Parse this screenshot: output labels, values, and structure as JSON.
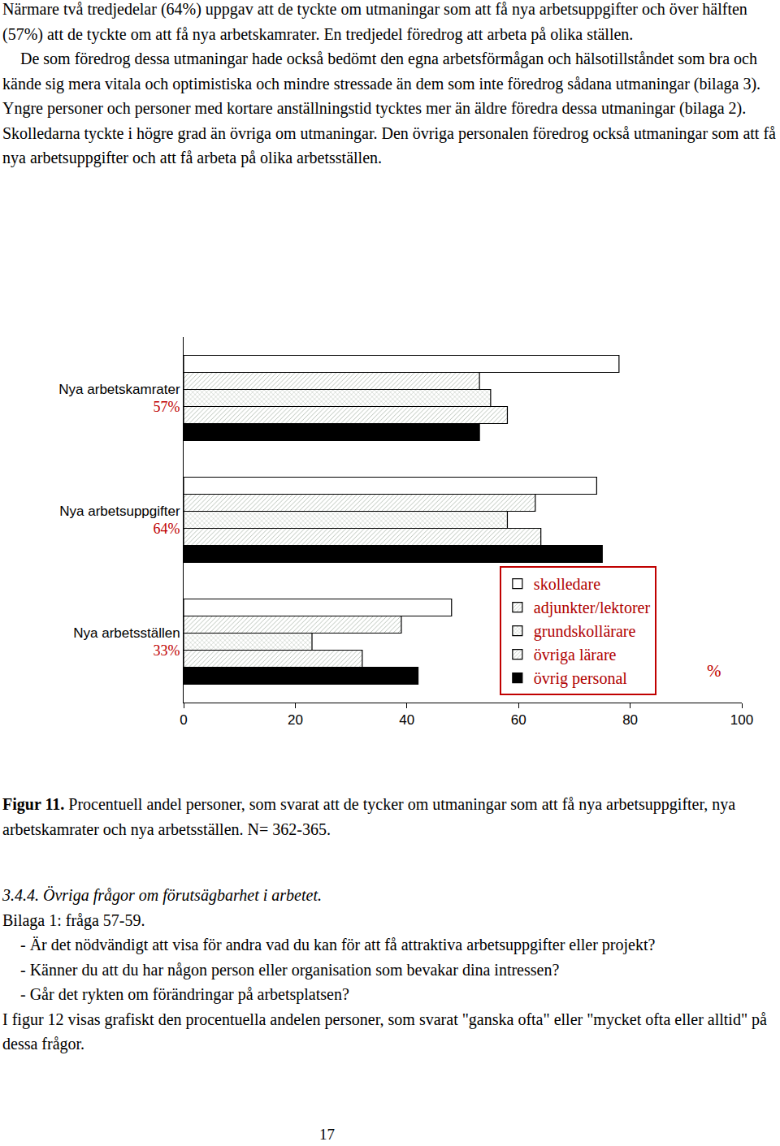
{
  "paragraphs_top": [
    "Närmare två tredjedelar (64%) uppgav att de tyckte om utmaningar som att få nya arbetsuppgifter och över hälften (57%) att de tyckte om att få  nya arbetskamrater. En tredjedel föredrog att arbeta på olika ställen.",
    "De som föredrog dessa utmaningar hade också bedömt den egna arbetsförmågan och hälsotillståndet som bra och kände sig mera vitala och optimistiska och mindre stressade än dem som inte föredrog sådana utmaningar (bilaga 3).",
    "Yngre personer och personer med kortare anställningstid tycktes mer än äldre föredra dessa utmaningar (bilaga 2).",
    "Skolledarna tyckte i högre grad än övriga om utmaningar. Den övriga personalen föredrog också utmaningar som att få nya arbetsuppgifter och att få arbeta på olika arbetsställen."
  ],
  "chart_data": {
    "type": "bar",
    "orientation": "horizontal",
    "categories": [
      "Nya arbetskamrater",
      "Nya arbetsuppgifter",
      "Nya arbetsställen"
    ],
    "category_subtitles": [
      "57%",
      "64%",
      "33%"
    ],
    "series": [
      {
        "name": "skolledare",
        "color": "#ffffff",
        "values": [
          78,
          74,
          48
        ]
      },
      {
        "name": "adjunkter/lektorer",
        "color": "#c9d8c5",
        "values": [
          53,
          63,
          39
        ]
      },
      {
        "name": "grundskollärare",
        "color": "#b57b7b",
        "values": [
          55,
          58,
          23
        ]
      },
      {
        "name": "övriga lärare",
        "color": "#2f3fc4",
        "values": [
          58,
          64,
          32
        ]
      },
      {
        "name": "övrig personal",
        "color": "#000000",
        "values": [
          53,
          75,
          42
        ]
      }
    ],
    "xlabel": "%",
    "xlim": [
      0,
      100
    ],
    "xticks": [
      0,
      20,
      40,
      60,
      80,
      100
    ],
    "grid": false,
    "legend": "bottom right"
  },
  "caption": {
    "label": "Figur 11.",
    "text": "Procentuell andel personer, som  svarat att de tycker om utmaningar som att få nya arbetsuppgifter, nya arbetskamrater och nya arbetsställen. N= 362-365."
  },
  "section": {
    "heading": "3.4.4. Övriga frågor  om förutsägbarhet i arbetet.",
    "reference": "Bilaga 1: fråga 57-59.",
    "items": [
      "- Är det nödvändigt att visa för andra vad du kan för att få attraktiva arbetsuppgifter eller projekt?",
      "- Känner du att du har någon person eller organisation som bevakar dina intressen?",
      "- Går det rykten om förändringar på arbetsplatsen?"
    ],
    "text": "I figur 12 visas grafiskt den procentuella andelen personer, som svarat \"ganska ofta\" eller \"mycket ofta eller alltid\" på dessa frågor."
  },
  "page_number": "17"
}
